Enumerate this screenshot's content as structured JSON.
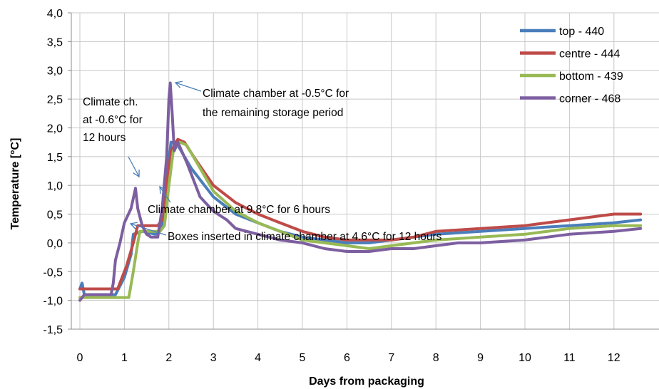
{
  "chart_data": {
    "type": "line",
    "title": "",
    "xlabel": "Days from packaging",
    "ylabel": "Temperature [°C]",
    "xlim": [
      0,
      12.6
    ],
    "ylim": [
      -1.5,
      4.0
    ],
    "x_ticks": [
      "0",
      "1",
      "2",
      "3",
      "4",
      "5",
      "6",
      "7",
      "8",
      "9",
      "10",
      "11",
      "12"
    ],
    "y_ticks": [
      "-1,5",
      "-1,0",
      "-0,5",
      "0,0",
      "0,5",
      "1,0",
      "1,5",
      "2,0",
      "2,5",
      "3,0",
      "3,5",
      "4,0"
    ],
    "grid": true,
    "legend_position": "top-right",
    "series": [
      {
        "name": "top - 440",
        "color": "#4a7ebb",
        "points": [
          [
            0,
            -0.8
          ],
          [
            0.05,
            -0.7
          ],
          [
            0.1,
            -0.9
          ],
          [
            0.8,
            -0.9
          ],
          [
            1.0,
            -0.6
          ],
          [
            1.15,
            -0.2
          ],
          [
            1.2,
            0.15
          ],
          [
            1.4,
            0.2
          ],
          [
            1.7,
            0.15
          ],
          [
            1.85,
            0.3
          ],
          [
            1.95,
            1.2
          ],
          [
            2.05,
            1.75
          ],
          [
            2.2,
            1.7
          ],
          [
            2.5,
            1.3
          ],
          [
            3.0,
            0.8
          ],
          [
            3.5,
            0.5
          ],
          [
            4.0,
            0.35
          ],
          [
            4.5,
            0.2
          ],
          [
            5.0,
            0.1
          ],
          [
            5.5,
            0.05
          ],
          [
            6.0,
            0.0
          ],
          [
            6.5,
            0.0
          ],
          [
            7.0,
            0.05
          ],
          [
            7.5,
            0.1
          ],
          [
            8.0,
            0.15
          ],
          [
            9.0,
            0.2
          ],
          [
            10.0,
            0.25
          ],
          [
            11.0,
            0.3
          ],
          [
            12.0,
            0.35
          ],
          [
            12.6,
            0.4
          ]
        ]
      },
      {
        "name": "centre - 444",
        "color": "#be4b48",
        "points": [
          [
            0,
            -0.8
          ],
          [
            0.85,
            -0.8
          ],
          [
            1.05,
            -0.4
          ],
          [
            1.2,
            0.0
          ],
          [
            1.3,
            0.3
          ],
          [
            1.75,
            0.3
          ],
          [
            1.85,
            0.4
          ],
          [
            1.95,
            1.0
          ],
          [
            2.05,
            1.6
          ],
          [
            2.2,
            1.8
          ],
          [
            2.35,
            1.75
          ],
          [
            2.6,
            1.45
          ],
          [
            3.0,
            1.0
          ],
          [
            3.5,
            0.7
          ],
          [
            4.0,
            0.5
          ],
          [
            4.5,
            0.35
          ],
          [
            5.0,
            0.2
          ],
          [
            5.5,
            0.1
          ],
          [
            6.0,
            0.05
          ],
          [
            7.0,
            0.05
          ],
          [
            7.5,
            0.1
          ],
          [
            8.0,
            0.2
          ],
          [
            9.0,
            0.25
          ],
          [
            10.0,
            0.3
          ],
          [
            11.0,
            0.4
          ],
          [
            12.0,
            0.5
          ],
          [
            12.6,
            0.5
          ]
        ]
      },
      {
        "name": "bottom - 439",
        "color": "#98b954",
        "points": [
          [
            0,
            -0.95
          ],
          [
            1.1,
            -0.95
          ],
          [
            1.2,
            -0.5
          ],
          [
            1.3,
            0.0
          ],
          [
            1.35,
            0.2
          ],
          [
            1.8,
            0.2
          ],
          [
            1.9,
            0.3
          ],
          [
            2.0,
            1.0
          ],
          [
            2.1,
            1.6
          ],
          [
            2.25,
            1.75
          ],
          [
            2.4,
            1.7
          ],
          [
            2.7,
            1.3
          ],
          [
            3.0,
            0.9
          ],
          [
            3.5,
            0.55
          ],
          [
            4.0,
            0.35
          ],
          [
            4.5,
            0.2
          ],
          [
            5.0,
            0.05
          ],
          [
            5.5,
            0.0
          ],
          [
            6.0,
            -0.05
          ],
          [
            6.5,
            -0.1
          ],
          [
            7.0,
            -0.05
          ],
          [
            7.5,
            0.0
          ],
          [
            8.0,
            0.05
          ],
          [
            9.0,
            0.1
          ],
          [
            10.0,
            0.15
          ],
          [
            11.0,
            0.25
          ],
          [
            12.0,
            0.3
          ],
          [
            12.6,
            0.3
          ]
        ]
      },
      {
        "name": "corner - 468",
        "color": "#7d5fa0",
        "points": [
          [
            0,
            -1.0
          ],
          [
            0.1,
            -0.9
          ],
          [
            0.7,
            -0.9
          ],
          [
            0.75,
            -0.7
          ],
          [
            0.8,
            -0.3
          ],
          [
            0.9,
            0.0
          ],
          [
            1.0,
            0.35
          ],
          [
            1.15,
            0.6
          ],
          [
            1.25,
            0.95
          ],
          [
            1.3,
            0.6
          ],
          [
            1.4,
            0.3
          ],
          [
            1.5,
            0.15
          ],
          [
            1.6,
            0.1
          ],
          [
            1.75,
            0.1
          ],
          [
            1.85,
            0.6
          ],
          [
            1.95,
            1.5
          ],
          [
            2.0,
            2.5
          ],
          [
            2.03,
            2.78
          ],
          [
            2.07,
            2.3
          ],
          [
            2.12,
            1.6
          ],
          [
            2.2,
            1.75
          ],
          [
            2.4,
            1.4
          ],
          [
            2.7,
            0.8
          ],
          [
            3.0,
            0.55
          ],
          [
            3.3,
            0.4
          ],
          [
            3.5,
            0.25
          ],
          [
            4.0,
            0.15
          ],
          [
            4.5,
            0.05
          ],
          [
            5.0,
            0.0
          ],
          [
            5.5,
            -0.1
          ],
          [
            6.0,
            -0.15
          ],
          [
            6.5,
            -0.15
          ],
          [
            7.0,
            -0.1
          ],
          [
            7.5,
            -0.1
          ],
          [
            8.0,
            -0.05
          ],
          [
            8.5,
            0.0
          ],
          [
            9.0,
            0.0
          ],
          [
            10.0,
            0.05
          ],
          [
            11.0,
            0.15
          ],
          [
            12.0,
            0.2
          ],
          [
            12.6,
            0.25
          ]
        ]
      }
    ],
    "annotations": [
      {
        "id": "ann1",
        "lines": [
          "Climate ch.",
          "at -0.6°C for",
          "12 hours"
        ]
      },
      {
        "id": "ann2",
        "lines": [
          "Climate chamber at -0.5°C for",
          "the remaining storage period"
        ]
      },
      {
        "id": "ann3",
        "lines": [
          "Climate chamber at 9.8°C for 6 hours"
        ]
      },
      {
        "id": "ann4",
        "lines": [
          "Boxes inserted in climate chamber at 4.6°C for 12 hours"
        ]
      }
    ]
  }
}
